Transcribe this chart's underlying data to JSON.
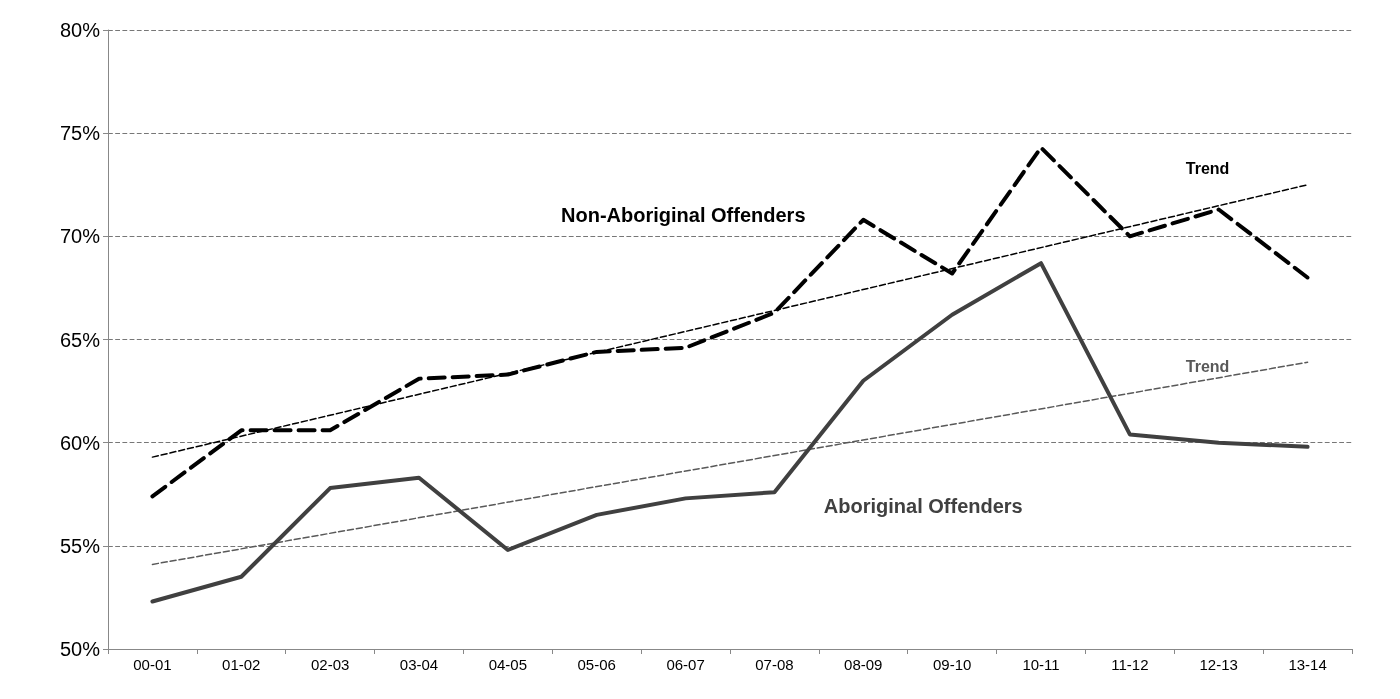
{
  "chart_data": {
    "type": "line",
    "categories": [
      "00-01",
      "01-02",
      "02-03",
      "03-04",
      "04-05",
      "05-06",
      "06-07",
      "07-08",
      "08-09",
      "09-10",
      "10-11",
      "11-12",
      "12-13",
      "13-14"
    ],
    "series": [
      {
        "name": "Non-Aboriginal Offenders",
        "color": "#000000",
        "line_style": "dashed",
        "values": [
          57.4,
          60.6,
          60.6,
          63.1,
          63.3,
          64.4,
          64.6,
          66.3,
          70.8,
          68.2,
          74.3,
          70.0,
          71.3,
          68.0
        ]
      },
      {
        "name": "Aboriginal Offenders",
        "color": "#404040",
        "line_style": "solid",
        "values": [
          52.3,
          53.5,
          57.8,
          58.3,
          54.8,
          56.5,
          57.3,
          57.6,
          63.0,
          66.2,
          68.7,
          60.4,
          60.0,
          59.8
        ]
      },
      {
        "name": "Trend",
        "color": "#000000",
        "line_style": "dashed",
        "x": [
          "00-01",
          "13-14"
        ],
        "values": [
          59.3,
          72.5
        ]
      },
      {
        "name": "Trend",
        "color": "#595959",
        "line_style": "dashed",
        "x": [
          "00-01",
          "13-14"
        ],
        "values": [
          54.1,
          63.9
        ]
      }
    ],
    "ylim": [
      50,
      80
    ],
    "yticks": [
      {
        "value": 50,
        "label": "50%"
      },
      {
        "value": 55,
        "label": "55%"
      },
      {
        "value": 60,
        "label": "60%"
      },
      {
        "value": 65,
        "label": "65%"
      },
      {
        "value": 70,
        "label": "70%"
      },
      {
        "value": 75,
        "label": "75%"
      },
      {
        "value": 80,
        "label": "80%"
      }
    ],
    "grid": "y",
    "marker": "none",
    "legend": false
  }
}
